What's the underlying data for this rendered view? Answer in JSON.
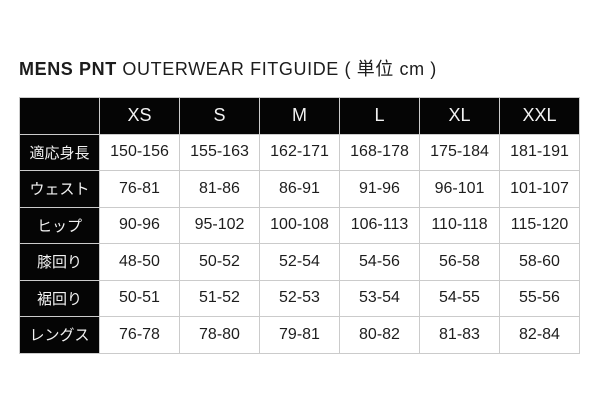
{
  "title": {
    "brand": "MENS PNT",
    "rest": "OUTERWEAR FITGUIDE ( 単位 cm )"
  },
  "table": {
    "columns": [
      "XS",
      "S",
      "M",
      "L",
      "XL",
      "XXL"
    ],
    "rows": [
      {
        "label": "適応身長",
        "values": [
          "150-156",
          "155-163",
          "162-171",
          "168-178",
          "175-184",
          "181-191"
        ]
      },
      {
        "label": "ウェスト",
        "values": [
          "76-81",
          "81-86",
          "86-91",
          "91-96",
          "96-101",
          "101-107"
        ]
      },
      {
        "label": "ヒップ",
        "values": [
          "90-96",
          "95-102",
          "100-108",
          "106-113",
          "110-118",
          "115-120"
        ]
      },
      {
        "label": "膝回り",
        "values": [
          "48-50",
          "50-52",
          "52-54",
          "54-56",
          "56-58",
          "58-60"
        ]
      },
      {
        "label": "裾回り",
        "values": [
          "50-51",
          "51-52",
          "52-53",
          "53-54",
          "54-55",
          "55-56"
        ]
      },
      {
        "label": "レングス",
        "values": [
          "76-78",
          "78-80",
          "79-81",
          "80-82",
          "81-83",
          "82-84"
        ]
      }
    ],
    "colors": {
      "header_bg": "#050505",
      "header_text": "#f2f2f2",
      "cell_text": "#1d1d1d",
      "border": "#cbcbcb"
    }
  }
}
